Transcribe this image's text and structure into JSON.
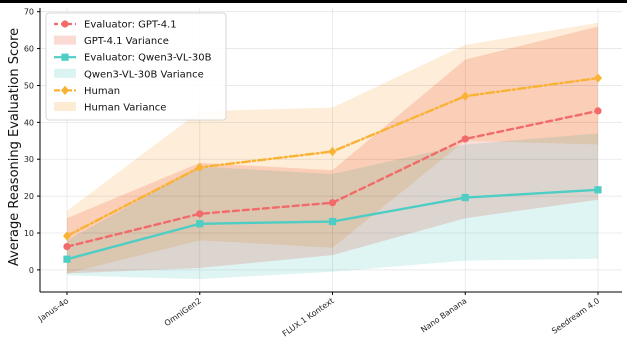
{
  "chart_data": {
    "type": "line",
    "title": "",
    "xlabel": "",
    "ylabel": "Average Reasoning Evaluation Score",
    "categories": [
      "Janus-4o",
      "OmniGen2",
      "FLUX.1 Kontext",
      "Nano Banana",
      "Seedream 4.0"
    ],
    "ylim": [
      -6,
      71
    ],
    "yticks": [
      0,
      10,
      20,
      30,
      40,
      50,
      60,
      70
    ],
    "grid": true,
    "legend_position": "top-left",
    "series": [
      {
        "name": "Evaluator: GPT-4.1",
        "values": [
          6.3,
          15.2,
          18.2,
          35.5,
          43.1
        ],
        "color": "#f26b6b",
        "linestyle": "dashed",
        "marker": "circle",
        "variance_name": "GPT-4.1 Variance",
        "variance_color": "#fbd3cc",
        "lower": [
          -1,
          0.5,
          4,
          14,
          19
        ],
        "upper": [
          14,
          29,
          27,
          57,
          66
        ]
      },
      {
        "name": "Evaluator: Qwen3-VL-30B",
        "values": [
          2.9,
          12.5,
          13.1,
          19.6,
          21.7
        ],
        "color": "#4ecdc4",
        "linestyle": "solid",
        "marker": "square",
        "variance_name": "Qwen3-VL-30B Variance",
        "variance_color": "#d4f2f0",
        "lower": [
          -1.5,
          -2.5,
          -0.5,
          2.5,
          3
        ],
        "upper": [
          8,
          28,
          26,
          34,
          37
        ]
      },
      {
        "name": "Human",
        "values": [
          9.2,
          27.8,
          32.1,
          47.1,
          52.0
        ],
        "color": "#f9b233",
        "linestyle": "dashdot",
        "marker": "diamond",
        "variance_name": "Human Variance",
        "variance_color": "#fde7cb",
        "lower": [
          -1,
          8,
          6,
          35,
          34
        ],
        "upper": [
          16,
          43,
          44,
          61,
          67
        ]
      }
    ]
  }
}
